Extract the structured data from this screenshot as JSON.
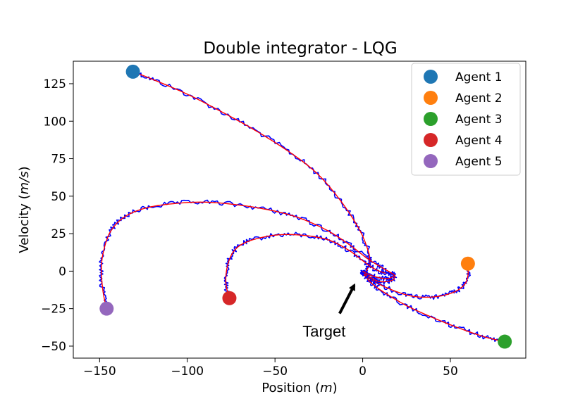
{
  "chart_data": {
    "type": "scatter",
    "title": "Double integrator - LQG",
    "xlabel": "Position (m)",
    "xlabel_unit": "m",
    "ylabel": "Velocity (m/s)",
    "ylabel_unit": "m/s",
    "xlim": [
      -165,
      93
    ],
    "ylim": [
      -58,
      140
    ],
    "xticks": [
      -150,
      -100,
      -50,
      0,
      50
    ],
    "xtick_labels": [
      "−150",
      "−100",
      "−50",
      "0",
      "50"
    ],
    "yticks": [
      -50,
      -25,
      0,
      25,
      50,
      75,
      100,
      125
    ],
    "ytick_labels": [
      "−50",
      "−25",
      "0",
      "25",
      "50",
      "75",
      "100",
      "125"
    ],
    "grid": false,
    "legend_position": "top-right",
    "series": [
      {
        "name": "Agent 1",
        "color": "#1f77b4",
        "start": [
          -131,
          133
        ],
        "trajectory": [
          [
            -131,
            133
          ],
          [
            -120,
            128
          ],
          [
            -100,
            118
          ],
          [
            -80,
            106
          ],
          [
            -60,
            93
          ],
          [
            -40,
            78
          ],
          [
            -25,
            64
          ],
          [
            -12,
            46
          ],
          [
            -2,
            28
          ],
          [
            3,
            14
          ],
          [
            4,
            6
          ],
          [
            2,
            0
          ],
          [
            0,
            -2
          ],
          [
            1,
            0
          ]
        ]
      },
      {
        "name": "Agent 2",
        "color": "#ff7f0e",
        "start": [
          60,
          5
        ],
        "trajectory": [
          [
            60,
            5
          ],
          [
            60,
            -3
          ],
          [
            58,
            -9
          ],
          [
            52,
            -14
          ],
          [
            42,
            -17
          ],
          [
            30,
            -17
          ],
          [
            20,
            -14
          ],
          [
            10,
            -9
          ],
          [
            4,
            -5
          ],
          [
            1,
            -2
          ],
          [
            0,
            0
          ]
        ]
      },
      {
        "name": "Agent 3",
        "color": "#2ca02c",
        "start": [
          81,
          -47
        ],
        "trajectory": [
          [
            81,
            -47
          ],
          [
            70,
            -44
          ],
          [
            55,
            -38
          ],
          [
            40,
            -31
          ],
          [
            25,
            -23
          ],
          [
            12,
            -14
          ],
          [
            5,
            -8
          ],
          [
            2,
            -4
          ],
          [
            0,
            -1
          ],
          [
            0,
            0
          ]
        ]
      },
      {
        "name": "Agent 4",
        "color": "#d62728",
        "start": [
          -76,
          -18
        ],
        "trajectory": [
          [
            -76,
            -18
          ],
          [
            -78,
            -8
          ],
          [
            -77,
            4
          ],
          [
            -73,
            14
          ],
          [
            -65,
            20
          ],
          [
            -50,
            24
          ],
          [
            -35,
            24
          ],
          [
            -20,
            21
          ],
          [
            -8,
            14
          ],
          [
            0,
            7
          ],
          [
            6,
            2
          ],
          [
            12,
            -1
          ],
          [
            18,
            -2
          ],
          [
            17,
            -6
          ],
          [
            10,
            -7
          ],
          [
            4,
            -4
          ],
          [
            0,
            -1
          ],
          [
            0,
            0
          ]
        ]
      },
      {
        "name": "Agent 5",
        "color": "#9467bd",
        "start": [
          -146,
          -25
        ],
        "trajectory": [
          [
            -146,
            -25
          ],
          [
            -148,
            -14
          ],
          [
            -149,
            0
          ],
          [
            -148,
            12
          ],
          [
            -144,
            26
          ],
          [
            -136,
            36
          ],
          [
            -124,
            42
          ],
          [
            -108,
            45
          ],
          [
            -90,
            46
          ],
          [
            -70,
            44
          ],
          [
            -50,
            40
          ],
          [
            -35,
            35
          ],
          [
            -20,
            27
          ],
          [
            -8,
            18
          ],
          [
            2,
            9
          ],
          [
            10,
            3
          ],
          [
            16,
            -1
          ],
          [
            18,
            -3
          ],
          [
            14,
            -5
          ],
          [
            8,
            -4
          ],
          [
            3,
            -2
          ],
          [
            0,
            0
          ]
        ]
      }
    ],
    "noisy_color": "#0000ff",
    "filtered_color": "#ff0000",
    "annotation": {
      "text": "Target",
      "point": [
        0,
        0
      ],
      "text_at": [
        -22,
        -40
      ]
    }
  }
}
